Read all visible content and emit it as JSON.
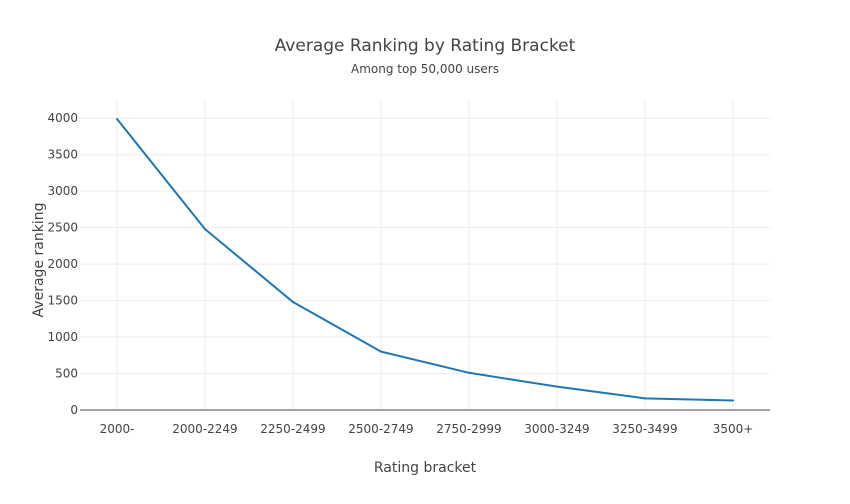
{
  "chart_data": {
    "type": "line",
    "title": "Average Ranking by Rating Bracket",
    "subtitle": "Among top 50,000 users",
    "xlabel": "Rating bracket",
    "ylabel": "Average ranking",
    "categories": [
      "2000-",
      "2000-2249",
      "2250-2499",
      "2500-2749",
      "2750-2999",
      "3000-3249",
      "3250-3499",
      "3500+"
    ],
    "series": [
      {
        "values": [
          3990,
          2480,
          1480,
          800,
          510,
          320,
          160,
          130
        ]
      }
    ],
    "ylim": [
      0,
      4250
    ],
    "yticks": [
      0,
      500,
      1000,
      1500,
      2000,
      2500,
      3000,
      3500,
      4000
    ],
    "grid": true,
    "legend": "none",
    "colors": {
      "line": "#1f77b4",
      "grid": "#eeeeee",
      "axis": "#444444",
      "text": "#444444"
    }
  }
}
